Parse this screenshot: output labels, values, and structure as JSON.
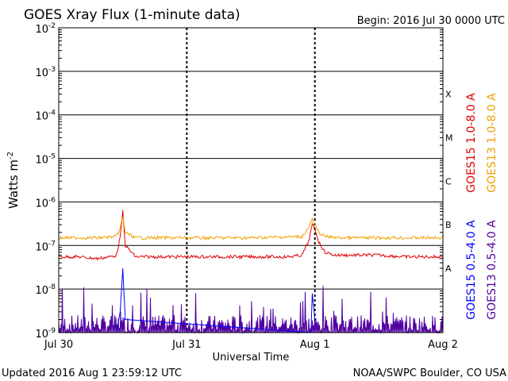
{
  "chart_data": {
    "type": "line",
    "title": "GOES Xray Flux (1-minute data)",
    "begin_label": "Begin:  2016 Jul 30 0000 UTC",
    "xlabel": "Universal Time",
    "ylabel": "Watts m",
    "ylabel_sup": "-2",
    "y_scale": "log",
    "ylim": [
      1e-09,
      0.01
    ],
    "y_ticks": [
      {
        "base": "10",
        "exp": "-2",
        "value": 0.01
      },
      {
        "base": "10",
        "exp": "-3",
        "value": 0.001
      },
      {
        "base": "10",
        "exp": "-4",
        "value": 0.0001
      },
      {
        "base": "10",
        "exp": "-5",
        "value": 1e-05
      },
      {
        "base": "10",
        "exp": "-6",
        "value": 1e-06
      },
      {
        "base": "10",
        "exp": "-7",
        "value": 1e-07
      },
      {
        "base": "10",
        "exp": "-8",
        "value": 1e-08
      },
      {
        "base": "10",
        "exp": "-9",
        "value": 1e-09
      }
    ],
    "x_range_days": [
      0,
      3
    ],
    "x_ticks": [
      {
        "label": "Jul 30",
        "day": 0
      },
      {
        "label": "Jul 31",
        "day": 1
      },
      {
        "label": "Aug 1",
        "day": 2
      },
      {
        "label": "Aug 2",
        "day": 3
      }
    ],
    "flare_classes": [
      {
        "label": "X",
        "value": 0.0003
      },
      {
        "label": "M",
        "value": 3e-05
      },
      {
        "label": "C",
        "value": 3e-06
      },
      {
        "label": "B",
        "value": 3e-07
      },
      {
        "label": "A",
        "value": 3e-08
      }
    ],
    "series": [
      {
        "name": "GOES15 1.0-8.0 A",
        "color": "#e00000",
        "x": [
          0.0,
          0.15,
          0.3,
          0.4,
          0.45,
          0.48,
          0.5,
          0.52,
          0.6,
          0.8,
          1.0,
          1.2,
          1.4,
          1.6,
          1.8,
          1.9,
          1.95,
          1.98,
          2.0,
          2.03,
          2.08,
          2.15,
          2.3,
          2.5,
          2.7,
          2.9,
          3.0
        ],
        "y": [
          5.5e-08,
          5.5e-08,
          5e-08,
          5.5e-08,
          6e-08,
          1.5e-07,
          6e-07,
          1e-07,
          5.5e-08,
          5.5e-08,
          5.5e-08,
          5.5e-08,
          5.5e-08,
          5.5e-08,
          5.5e-08,
          6e-08,
          1.2e-07,
          3e-07,
          2.5e-07,
          1.2e-07,
          7e-08,
          6e-08,
          6e-08,
          6e-08,
          5.5e-08,
          5.5e-08,
          5.5e-08
        ]
      },
      {
        "name": "GOES13 1.0-8.0 A",
        "color": "#f0a000",
        "x": [
          0.0,
          0.3,
          0.45,
          0.48,
          0.5,
          0.52,
          0.6,
          1.0,
          1.5,
          1.9,
          1.95,
          1.98,
          2.0,
          2.03,
          2.08,
          2.2,
          2.5,
          3.0
        ],
        "y": [
          1.5e-07,
          1.5e-07,
          1.6e-07,
          2.5e-07,
          4.5e-07,
          2e-07,
          1.5e-07,
          1.5e-07,
          1.5e-07,
          1.6e-07,
          2.5e-07,
          4e-07,
          3e-07,
          2e-07,
          1.6e-07,
          1.5e-07,
          1.5e-07,
          1.5e-07
        ]
      },
      {
        "name": "GOES15 0.5-4.0 A",
        "color": "#0000ff",
        "x": [
          0.45,
          0.48,
          0.5,
          0.52,
          1.97,
          1.98,
          2.0
        ],
        "y": [
          1e-09,
          3e-09,
          3e-08,
          2e-09,
          1e-09,
          8e-09,
          2e-09
        ]
      },
      {
        "name": "GOES13 0.5-4.0 A",
        "color": "#5000a0",
        "x": [
          0.0,
          0.5,
          1.0,
          1.5,
          2.0,
          2.5,
          3.0
        ],
        "y": [
          3e-09,
          3e-09,
          3e-09,
          3e-09,
          3e-09,
          3e-09,
          3e-09
        ]
      }
    ],
    "legend": "right"
  },
  "footer": {
    "updated": "Updated 2016 Aug  1 23:59:12 UTC",
    "source": "NOAA/SWPC Boulder, CO USA"
  }
}
